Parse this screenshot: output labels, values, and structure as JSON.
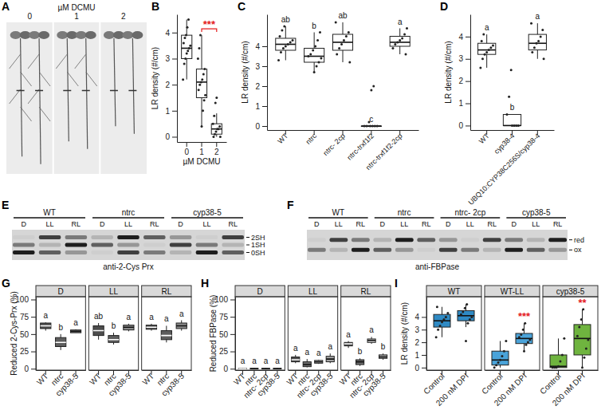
{
  "chart_data": [
    {
      "type": "image",
      "panel": "A",
      "title": "µM DCMU",
      "labels": [
        "0",
        "1",
        "2"
      ]
    },
    {
      "type": "box",
      "panel": "B",
      "x_label": "µM DCMU",
      "y_label": "LR density (#/cm)",
      "categories": [
        "0",
        "1",
        "2"
      ],
      "color": "#ffffff",
      "ylim": [
        -0.2,
        4.7
      ],
      "yticks": [
        0,
        1,
        2,
        3,
        4
      ],
      "boxes": [
        {
          "min": 2.2,
          "q1": 3.0,
          "median": 3.4,
          "q3": 3.9,
          "max": 4.5,
          "points": [
            2.2,
            2.8,
            3.0,
            3.2,
            3.3,
            3.4,
            3.5,
            3.6,
            3.8,
            3.9,
            4.2,
            4.5
          ]
        },
        {
          "min": 0.4,
          "q1": 1.5,
          "median": 2.1,
          "q3": 2.6,
          "max": 3.9,
          "points": [
            0.4,
            1.0,
            1.4,
            1.6,
            1.8,
            2.0,
            2.1,
            2.2,
            2.4,
            2.6,
            3.0,
            3.4,
            3.9
          ]
        },
        {
          "min": 0,
          "q1": 0.1,
          "median": 0.3,
          "q3": 0.5,
          "max": 0.9,
          "points": [
            0,
            0,
            0.1,
            0.2,
            0.3,
            0.3,
            0.4,
            0.5,
            0.8,
            1.3,
            1.5
          ]
        }
      ],
      "annotations": [
        {
          "text": "***",
          "from": 1,
          "to": 2,
          "color": "#e41a1c"
        }
      ]
    },
    {
      "type": "box",
      "panel": "C",
      "y_label": "LR density (#/cm)",
      "categories": [
        "WT",
        "ntrc",
        "ntrc- 2cp",
        "ntrc-trxf1f2",
        "ntrc-trxf1f2-2cp"
      ],
      "color": "#ffffff",
      "ylim": [
        -0.2,
        5.6
      ],
      "yticks": [
        0,
        1,
        2,
        3,
        4
      ],
      "boxes": [
        {
          "min": 3.3,
          "q1": 3.8,
          "median": 4.1,
          "q3": 4.4,
          "max": 5.0,
          "points": [
            3.3,
            3.7,
            3.9,
            4.0,
            4.1,
            4.2,
            4.3,
            4.5,
            4.8,
            5.0
          ]
        },
        {
          "min": 2.7,
          "q1": 3.2,
          "median": 3.5,
          "q3": 3.9,
          "max": 4.7,
          "points": [
            2.7,
            3.0,
            3.2,
            3.4,
            3.5,
            3.6,
            3.8,
            4.0,
            4.3,
            4.7
          ]
        },
        {
          "min": 3.2,
          "q1": 3.8,
          "median": 4.2,
          "q3": 4.6,
          "max": 5.2,
          "points": [
            3.2,
            3.6,
            3.9,
            4.1,
            4.3,
            4.5,
            4.7,
            5.2
          ]
        },
        {
          "min": 0,
          "q1": 0,
          "median": 0,
          "q3": 0,
          "max": 0,
          "points": [
            0,
            0,
            0,
            0,
            0,
            0,
            0.2,
            1.8,
            2.0
          ]
        },
        {
          "min": 3.6,
          "q1": 4.0,
          "median": 4.2,
          "q3": 4.5,
          "max": 4.9,
          "points": [
            3.6,
            3.9,
            4.1,
            4.2,
            4.3,
            4.4,
            4.6,
            4.9
          ]
        }
      ],
      "letters": [
        "ab",
        "b",
        "ab",
        "c",
        "a"
      ]
    },
    {
      "type": "box",
      "panel": "D",
      "y_label": "LR density (#/cm)",
      "categories": [
        "WT",
        "cyp38-4",
        "UBQ10:CYP38C256S/cyp38-4"
      ],
      "color": "#ffffff",
      "ylim": [
        -0.2,
        5.0
      ],
      "yticks": [
        0,
        1,
        2,
        3,
        4
      ],
      "boxes": [
        {
          "min": 2.6,
          "q1": 3.2,
          "median": 3.4,
          "q3": 3.7,
          "max": 4.1,
          "points": [
            2.6,
            3.0,
            3.2,
            3.3,
            3.4,
            3.5,
            3.6,
            3.8,
            4.1
          ]
        },
        {
          "min": 0,
          "q1": 0,
          "median": 0,
          "q3": 0.5,
          "max": 0.5,
          "points": [
            0,
            0,
            0,
            0,
            0.5,
            1.3,
            2.5
          ]
        },
        {
          "min": 3.0,
          "q1": 3.4,
          "median": 3.7,
          "q3": 4.1,
          "max": 4.6,
          "points": [
            3.0,
            3.3,
            3.5,
            3.7,
            3.8,
            4.0,
            4.3,
            4.6
          ]
        }
      ],
      "letters": [
        "a",
        "b",
        "a"
      ]
    },
    {
      "type": "blot",
      "panel": "E",
      "groups": [
        "WT",
        "ntrc",
        "cyp38-5"
      ],
      "lanes": [
        "D",
        "LL",
        "RL"
      ],
      "band_labels": [
        "2SH",
        "1SH",
        "0SH"
      ],
      "antibody": "anti-2-Cys Prx"
    },
    {
      "type": "blot",
      "panel": "F",
      "groups": [
        "WT",
        "ntrc",
        "ntrc- 2cp",
        "cyp38-5"
      ],
      "lanes": [
        "D",
        "LL",
        "RL"
      ],
      "band_labels": [
        "red",
        "ox"
      ],
      "antibody": "anti-FBPase"
    },
    {
      "type": "box",
      "panel": "G",
      "y_label": "Reduced 2-Cys-Prx (%)",
      "ylim": [
        -2,
        104
      ],
      "yticks": [
        0,
        25,
        50,
        75,
        100
      ],
      "colors": [
        "#4d4d4d",
        "#5e5e5e",
        "#8a8a8a"
      ],
      "facets": [
        {
          "title": "D",
          "categories": [
            "WT",
            "ntrc",
            "cyp38-5"
          ],
          "letters": [
            "a",
            "b",
            "a"
          ],
          "boxes": [
            {
              "min": 55,
              "q1": 58,
              "median": 62,
              "q3": 66,
              "max": 67
            },
            {
              "min": 27,
              "q1": 32,
              "median": 38,
              "q3": 45,
              "max": 50
            },
            {
              "min": 52,
              "q1": 52,
              "median": 54,
              "q3": 56,
              "max": 57
            }
          ]
        },
        {
          "title": "LL",
          "categories": [
            "WT",
            "ntrc",
            "cyp38-5"
          ],
          "letters": [
            "ab",
            "b",
            "a"
          ],
          "boxes": [
            {
              "min": 42,
              "q1": 48,
              "median": 55,
              "q3": 62,
              "max": 66
            },
            {
              "min": 35,
              "q1": 38,
              "median": 42,
              "q3": 48,
              "max": 52
            },
            {
              "min": 54,
              "q1": 56,
              "median": 60,
              "q3": 63,
              "max": 65
            }
          ]
        },
        {
          "title": "RL",
          "categories": [
            "WT",
            "ntrc",
            "cyp38-5"
          ],
          "letters": [
            "a",
            "a",
            "a"
          ],
          "boxes": [
            {
              "min": 55,
              "q1": 57,
              "median": 60,
              "q3": 63,
              "max": 65
            },
            {
              "min": 38,
              "q1": 42,
              "median": 48,
              "q3": 55,
              "max": 62
            },
            {
              "min": 55,
              "q1": 58,
              "median": 62,
              "q3": 66,
              "max": 70
            }
          ]
        }
      ]
    },
    {
      "type": "box",
      "panel": "H",
      "y_label": "Reduced FBPase (%)",
      "ylim": [
        -2,
        104
      ],
      "yticks": [
        0,
        25,
        50,
        75,
        100
      ],
      "colors": [
        "#4d4d4d",
        "#6e6e6e",
        "#d9d9d9",
        "#a6a6a6"
      ],
      "facets": [
        {
          "title": "D",
          "categories": [
            "WT",
            "ntrc",
            "ntrc- 2cp",
            "cyp38-5"
          ],
          "letters": [
            "a",
            "a",
            "a",
            "a"
          ],
          "boxes": [
            {
              "min": 0,
              "q1": 0,
              "median": 0,
              "q3": 0.5,
              "max": 1
            },
            {
              "min": 0,
              "q1": 0,
              "median": 0,
              "q3": 0.5,
              "max": 1
            },
            {
              "min": 0,
              "q1": 0,
              "median": 0,
              "q3": 0.5,
              "max": 1
            },
            {
              "min": 0,
              "q1": 0,
              "median": 0,
              "q3": 0.5,
              "max": 1
            }
          ]
        },
        {
          "title": "LL",
          "categories": [
            "WT",
            "ntrc",
            "ntrc- 2cp",
            "cyp38-5"
          ],
          "letters": [
            "a",
            "a",
            "a",
            "a"
          ],
          "boxes": [
            {
              "min": 8,
              "q1": 10,
              "median": 13,
              "q3": 17,
              "max": 20
            },
            {
              "min": 2,
              "q1": 3,
              "median": 6,
              "q3": 10,
              "max": 14
            },
            {
              "min": 7,
              "q1": 8,
              "median": 10,
              "q3": 12,
              "max": 13
            },
            {
              "min": 8,
              "q1": 10,
              "median": 14,
              "q3": 18,
              "max": 22
            }
          ]
        },
        {
          "title": "RL",
          "categories": [
            "WT",
            "ntrc",
            "ntrc- 2cp",
            "cyp38-5"
          ],
          "letters": [
            "a",
            "b",
            "a",
            "b"
          ],
          "boxes": [
            {
              "min": 30,
              "q1": 33,
              "median": 36,
              "q3": 38,
              "max": 40
            },
            {
              "min": 4,
              "q1": 6,
              "median": 10,
              "q3": 13,
              "max": 15
            },
            {
              "min": 36,
              "q1": 38,
              "median": 41,
              "q3": 43,
              "max": 46
            },
            {
              "min": 13,
              "q1": 15,
              "median": 17,
              "q3": 20,
              "max": 22
            }
          ]
        }
      ]
    },
    {
      "type": "box",
      "panel": "I",
      "y_label": "LR density (#/cm)",
      "ylim": [
        -0.2,
        5.6
      ],
      "yticks": [
        0,
        1,
        2,
        3,
        4
      ],
      "facets": [
        {
          "title": "WT",
          "color": "#2f8ac4",
          "categories": [
            "Control",
            "200 nM DPI"
          ],
          "boxes": [
            {
              "min": 2.4,
              "q1": 3.2,
              "median": 3.7,
              "q3": 4.2,
              "max": 4.8,
              "points": [
                2.4,
                3.0,
                3.3,
                3.6,
                3.8,
                4.0,
                4.3,
                4.8
              ]
            },
            {
              "min": 3.2,
              "q1": 3.7,
              "median": 4.1,
              "q3": 4.5,
              "max": 5.0,
              "points": [
                2.1,
                3.5,
                3.8,
                4.0,
                4.2,
                4.4,
                4.7,
                5.0
              ]
            }
          ]
        },
        {
          "title": "WT-LL",
          "color": "#4aa3d9",
          "categories": [
            "Control",
            "200 nM DPI"
          ],
          "boxes": [
            {
              "min": 0,
              "q1": 0.2,
              "median": 0.6,
              "q3": 1.3,
              "max": 2.1,
              "points": [
                0,
                0.2,
                0.4,
                0.6,
                0.9,
                1.3,
                2.1
              ]
            },
            {
              "min": 1.3,
              "q1": 1.9,
              "median": 2.3,
              "q3": 2.7,
              "max": 3.5,
              "points": [
                1.3,
                1.8,
                2.0,
                2.2,
                2.4,
                2.6,
                3.0,
                3.5
              ]
            }
          ],
          "annotations": [
            {
              "text": "***",
              "category": 1,
              "color": "#e41a1c"
            }
          ]
        },
        {
          "title": "cyp38-5",
          "color": "#6fb43f",
          "categories": [
            "Control",
            "200 nM DPI"
          ],
          "boxes": [
            {
              "min": 0,
              "q1": 0,
              "median": 0.1,
              "q3": 1.0,
              "max": 2.3,
              "points": [
                0,
                0,
                0,
                0.1,
                0.5,
                1.0,
                2.3
              ]
            },
            {
              "min": 0,
              "q1": 1.0,
              "median": 2.3,
              "q3": 3.4,
              "max": 4.6,
              "points": [
                0,
                0.8,
                1.5,
                2.2,
                2.5,
                3.2,
                3.8,
                4.6
              ]
            }
          ],
          "annotations": [
            {
              "text": "**",
              "category": 1,
              "color": "#e41a1c"
            }
          ]
        }
      ]
    }
  ]
}
